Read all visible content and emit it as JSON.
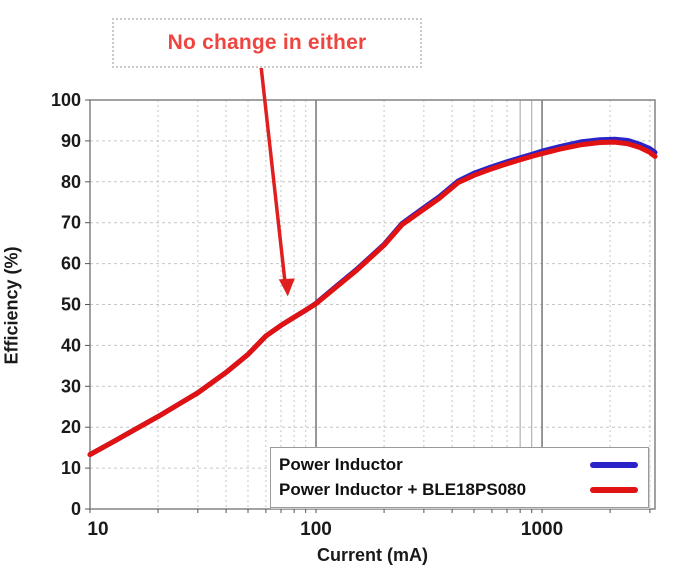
{
  "chart_data": {
    "type": "line",
    "xlabel": "Current (mA)",
    "ylabel": "Efficiency (%)",
    "x_scale": "log",
    "xlim": [
      10,
      3160
    ],
    "ylim": [
      0,
      100
    ],
    "x_ticks": [
      10,
      100,
      1000
    ],
    "x_minor_ticks": [
      20,
      30,
      40,
      50,
      60,
      70,
      80,
      90,
      200,
      300,
      400,
      500,
      600,
      700,
      800,
      900,
      2000,
      3000
    ],
    "y_ticks": [
      0,
      10,
      20,
      30,
      40,
      50,
      60,
      70,
      80,
      90,
      100
    ],
    "grid": true,
    "legend_position": "bottom-right-inside",
    "series": [
      {
        "name": "Power Inductor",
        "color": "#2a24c8",
        "points": [
          [
            10,
            13.3
          ],
          [
            13,
            16.8
          ],
          [
            16,
            19.6
          ],
          [
            20,
            22.6
          ],
          [
            25,
            25.8
          ],
          [
            30,
            28.4
          ],
          [
            40,
            33.4
          ],
          [
            50,
            37.8
          ],
          [
            60,
            42.3
          ],
          [
            70,
            44.9
          ],
          [
            80,
            46.9
          ],
          [
            90,
            48.6
          ],
          [
            100,
            50.3
          ],
          [
            120,
            54.0
          ],
          [
            150,
            58.4
          ],
          [
            200,
            64.7
          ],
          [
            240,
            69.8
          ],
          [
            300,
            73.7
          ],
          [
            350,
            76.3
          ],
          [
            425,
            80.2
          ],
          [
            500,
            82.1
          ],
          [
            600,
            83.7
          ],
          [
            700,
            84.9
          ],
          [
            800,
            85.9
          ],
          [
            900,
            86.7
          ],
          [
            1000,
            87.5
          ],
          [
            1200,
            88.6
          ],
          [
            1500,
            89.8
          ],
          [
            1800,
            90.3
          ],
          [
            2100,
            90.4
          ],
          [
            2400,
            90.1
          ],
          [
            2700,
            89.2
          ],
          [
            3000,
            88.1
          ],
          [
            3160,
            87.2
          ]
        ]
      },
      {
        "name": "Power Inductor + BLE18PS080",
        "color": "#e01212",
        "points": [
          [
            10,
            13.3
          ],
          [
            13,
            16.8
          ],
          [
            16,
            19.6
          ],
          [
            20,
            22.6
          ],
          [
            25,
            25.8
          ],
          [
            30,
            28.4
          ],
          [
            40,
            33.4
          ],
          [
            50,
            37.8
          ],
          [
            60,
            42.3
          ],
          [
            70,
            44.9
          ],
          [
            80,
            46.9
          ],
          [
            90,
            48.6
          ],
          [
            100,
            50.2
          ],
          [
            120,
            53.8
          ],
          [
            150,
            58.2
          ],
          [
            200,
            64.5
          ],
          [
            240,
            69.5
          ],
          [
            300,
            73.3
          ],
          [
            350,
            75.9
          ],
          [
            425,
            79.8
          ],
          [
            500,
            81.6
          ],
          [
            600,
            83.2
          ],
          [
            700,
            84.4
          ],
          [
            800,
            85.4
          ],
          [
            900,
            86.2
          ],
          [
            1000,
            86.9
          ],
          [
            1200,
            88.0
          ],
          [
            1500,
            89.1
          ],
          [
            1800,
            89.6
          ],
          [
            2100,
            89.7
          ],
          [
            2400,
            89.3
          ],
          [
            2700,
            88.4
          ],
          [
            3000,
            87.2
          ],
          [
            3160,
            86.2
          ]
        ]
      }
    ],
    "annotation": {
      "text": "No change in either",
      "color": "#ef4540",
      "arrow_color": "#e02020",
      "arrow_points_to": {
        "x": 75,
        "y": 52
      }
    }
  }
}
